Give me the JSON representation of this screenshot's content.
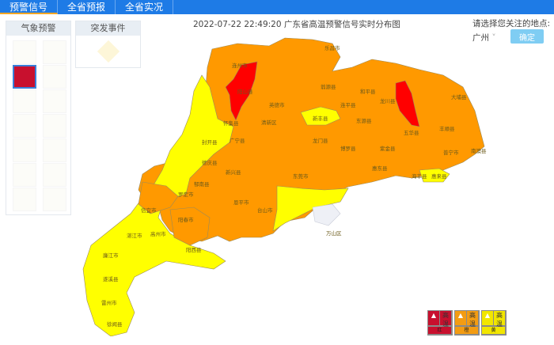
{
  "tabs": [
    {
      "label": "预警信号",
      "active": true
    },
    {
      "label": "全省预报"
    },
    {
      "label": "全省实况"
    }
  ],
  "left_panel": {
    "tab1": "气象预警",
    "tab2": "突发事件"
  },
  "title": "2022-07-22 22:49:20 广东省高温预警信号实时分布图",
  "location": {
    "label": "请选择您关注的地点:",
    "selected": "广州",
    "confirm": "确定"
  },
  "colors": {
    "red": "#ff0000",
    "orange": "#ff9900",
    "yellow": "#ffff00",
    "border": "#9a8a5a"
  },
  "legend": [
    {
      "level": "红",
      "color": "#c8102e",
      "text": "高温"
    },
    {
      "level": "橙",
      "color": "#f39c12",
      "text": "高温"
    },
    {
      "level": "黄",
      "color": "#f2e600",
      "text": "高温"
    }
  ],
  "map_labels": [
    "连州市",
    "乐昌市",
    "阳山县",
    "英德市",
    "翁源县",
    "连平县",
    "和平县",
    "龙川县",
    "新丰县",
    "怀集县",
    "广宁县",
    "封开县",
    "德庆县",
    "郁南县",
    "罗定市",
    "阳春市",
    "信宜市",
    "高州市",
    "廉江市",
    "遂溪县",
    "雷州市",
    "徐闻县",
    "东源县",
    "五华县",
    "大埔县",
    "丰顺县",
    "惠东县",
    "海丰县",
    "普宁市",
    "惠来县",
    "南澳县",
    "万山区",
    "东莞市",
    "台山市",
    "恩平市",
    "阳西县",
    "龙门县",
    "博罗县",
    "紫金县",
    "清新区",
    "新兴县",
    "湛江市"
  ]
}
